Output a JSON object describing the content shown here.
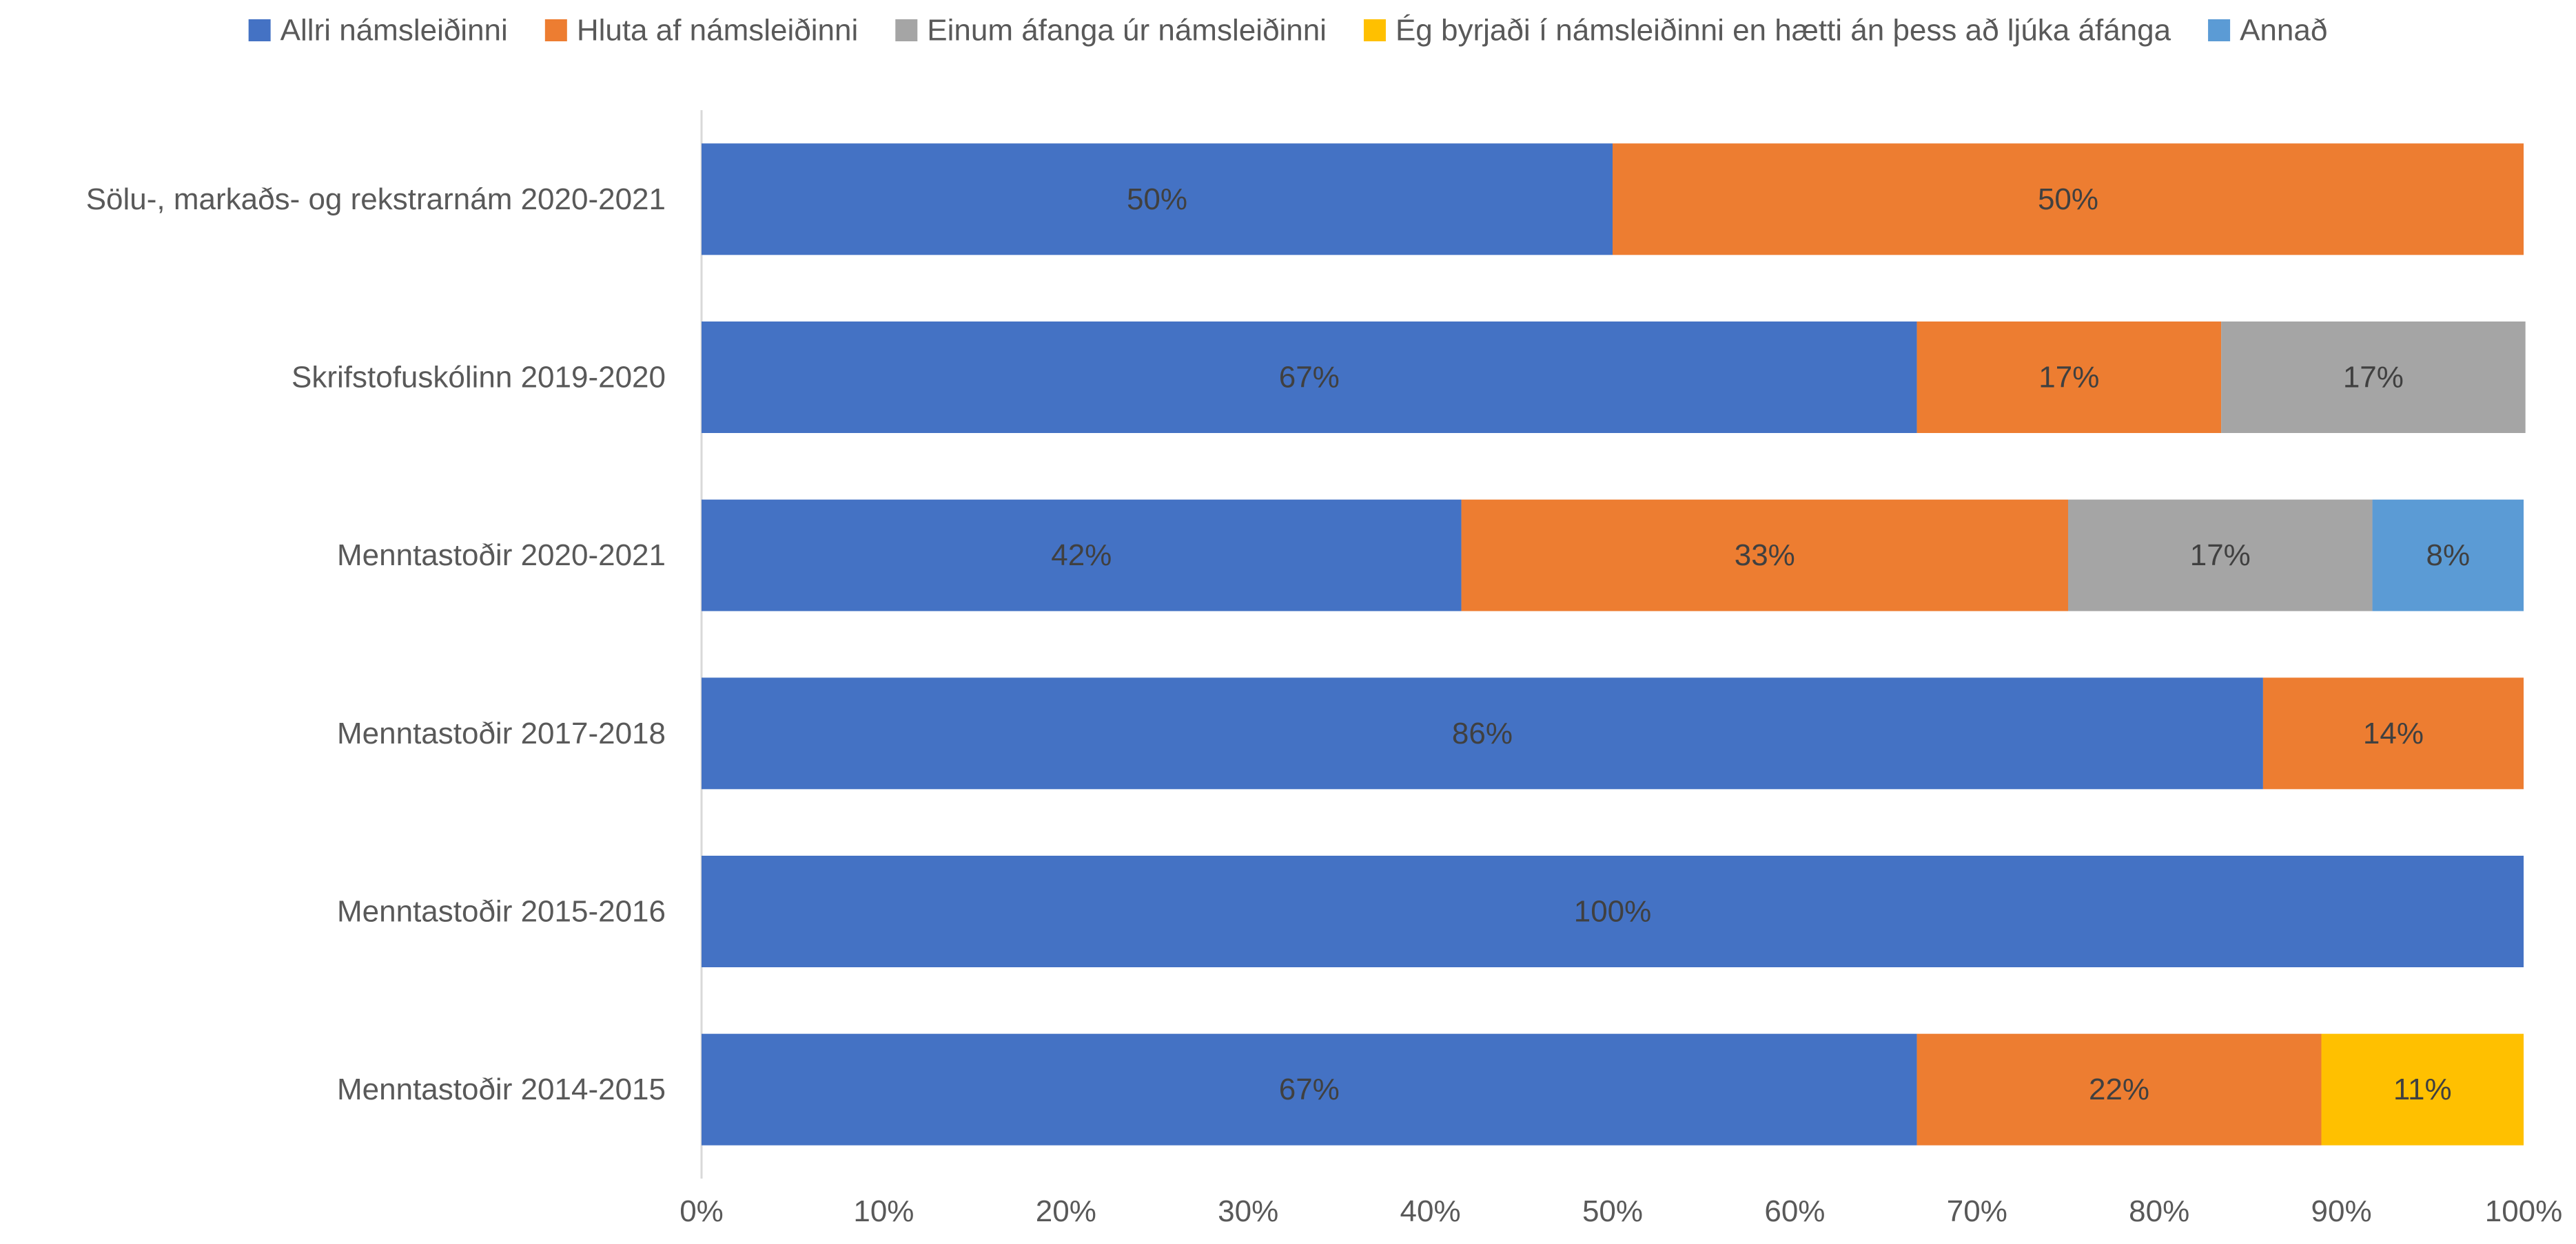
{
  "chart_data": {
    "type": "bar",
    "orientation": "horizontal",
    "stacked": "percent",
    "title": "",
    "xlabel": "",
    "ylabel": "",
    "xlim": [
      0,
      100
    ],
    "x_ticks": [
      "0%",
      "10%",
      "20%",
      "30%",
      "40%",
      "50%",
      "60%",
      "70%",
      "80%",
      "90%",
      "100%"
    ],
    "grid": false,
    "legend_position": "top",
    "categories": [
      "Sölu-, markaðs- og rekstrarnám 2020-2021",
      "Skrifstofuskólinn 2019-2020",
      "Menntastoðir 2020-2021",
      "Menntastoðir 2017-2018",
      "Menntastoðir 2015-2016",
      "Menntastoðir 2014-2015"
    ],
    "series": [
      {
        "name": "Allri námsleiðinni",
        "color": "#4472C4",
        "values": [
          50,
          66.7,
          41.7,
          85.7,
          100,
          66.7
        ],
        "labels": [
          "50%",
          "67%",
          "42%",
          "86%",
          "100%",
          "67%"
        ]
      },
      {
        "name": "Hluta af námsleiðinni",
        "color": "#ED7D31",
        "values": [
          50,
          16.7,
          33.3,
          14.3,
          0,
          22.2
        ],
        "labels": [
          "50%",
          "17%",
          "33%",
          "14%",
          "",
          "22%"
        ]
      },
      {
        "name": "Einum áfanga úr námsleiðinni",
        "color": "#A5A5A5",
        "values": [
          0,
          16.7,
          16.7,
          0,
          0,
          0
        ],
        "labels": [
          "",
          "17%",
          "17%",
          "",
          "",
          ""
        ]
      },
      {
        "name": "Ég byrjaði í námsleiðinni en hætti án þess að ljúka áfánga",
        "color": "#FFC000",
        "values": [
          0,
          0,
          0,
          0,
          0,
          11.1
        ],
        "labels": [
          "",
          "",
          "",
          "",
          "",
          "11%"
        ]
      },
      {
        "name": "Annað",
        "color": "#5B9BD5",
        "values": [
          0,
          0,
          8.3,
          0,
          0,
          0
        ],
        "labels": [
          "",
          "",
          "8%",
          "",
          "",
          ""
        ]
      }
    ]
  }
}
